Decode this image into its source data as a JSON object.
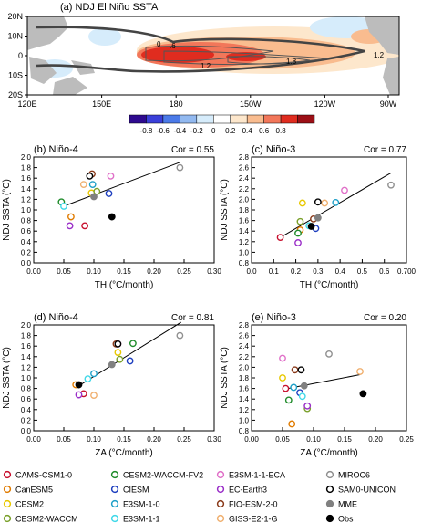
{
  "chart_data": [
    {
      "type": "heatmap",
      "title": "(a) NDJ El Niño SSTA",
      "x_ticks": [
        "120E",
        "150E",
        "180",
        "150W",
        "120W",
        "90W"
      ],
      "y_ticks": [
        "20N",
        "10N",
        "0",
        "10S",
        "20S"
      ],
      "contour_labels": [
        "0",
        ".6",
        "1.2",
        "1.8",
        "1.2"
      ],
      "colorbar": {
        "ticks": [
          "-0.8",
          "-0.6",
          "-0.4",
          "-0.2",
          "0",
          "0.2",
          "0.4",
          "0.6",
          "0.8"
        ],
        "colors": [
          "#2e0a8f",
          "#3a3fd9",
          "#4b7ae8",
          "#92b9f0",
          "#d6ecfb",
          "#ffffff",
          "#fde7cc",
          "#f9bc8f",
          "#f2775a",
          "#e02c1f",
          "#9c0f16"
        ]
      }
    },
    {
      "type": "scatter",
      "title": "(b) Niño-4",
      "cor": "Cor = 0.55",
      "xlabel": "TH (°C/month)",
      "ylabel": "NDJ SSTA (°C)",
      "xlim": [
        0,
        0.3
      ],
      "ylim": [
        0,
        2
      ],
      "x_ticks": [
        "0.00",
        "0.05",
        "0.10",
        "0.15",
        "0.20",
        "0.25",
        "0.30"
      ],
      "y_ticks": [
        "0.0",
        "0.2",
        "0.4",
        "0.6",
        "0.8",
        "1.0",
        "1.2",
        "1.4",
        "1.6",
        "1.8",
        "2.0"
      ],
      "x_tick_values": [
        0,
        0.05,
        0.1,
        0.15,
        0.2,
        0.25,
        0.3
      ],
      "y_tick_values": [
        0,
        0.2,
        0.4,
        0.6,
        0.8,
        1.0,
        1.2,
        1.4,
        1.6,
        1.8,
        2.0
      ],
      "fit": [
        [
          0.045,
          1.05
        ],
        [
          0.243,
          1.9
        ]
      ],
      "points": [
        {
          "model": "CAMS-CSM1-0",
          "x": 0.085,
          "y": 0.7
        },
        {
          "model": "CanESM5",
          "x": 0.062,
          "y": 0.87
        },
        {
          "model": "CESM2",
          "x": 0.096,
          "y": 1.32
        },
        {
          "model": "CESM2-WACCM",
          "x": 0.105,
          "y": 1.35
        },
        {
          "model": "CESM2-WACCM-FV2",
          "x": 0.046,
          "y": 1.15
        },
        {
          "model": "CIESM",
          "x": 0.125,
          "y": 1.31
        },
        {
          "model": "E3SM-1-0",
          "x": 0.098,
          "y": 1.48
        },
        {
          "model": "E3SM-1-1",
          "x": 0.05,
          "y": 1.07
        },
        {
          "model": "E3SM-1-1-ECA",
          "x": 0.128,
          "y": 1.64
        },
        {
          "model": "EC-Earth3",
          "x": 0.06,
          "y": 0.7
        },
        {
          "model": "FIO-ESM-2-0",
          "x": 0.097,
          "y": 1.68
        },
        {
          "model": "GISS-E2-1-G",
          "x": 0.083,
          "y": 1.48
        },
        {
          "model": "MIROC6",
          "x": 0.243,
          "y": 1.8
        },
        {
          "model": "SAM0-UNICON",
          "x": 0.093,
          "y": 1.64
        },
        {
          "model": "MME",
          "x": 0.1,
          "y": 1.25
        },
        {
          "model": "Obs",
          "x": 0.13,
          "y": 0.87
        }
      ]
    },
    {
      "type": "scatter",
      "title": "(c) Niño-3",
      "cor": "Cor = 0.77",
      "xlabel": "TH (°C/month)",
      "ylabel": "NDJ SSTA (°C)",
      "xlim": [
        0,
        0.7
      ],
      "ylim": [
        0.8,
        2.8
      ],
      "x_ticks": [
        "0.0",
        "0.1",
        "0.2",
        "0.3",
        "0.4",
        "0.5",
        "0.6",
        "0.700"
      ],
      "y_ticks": [
        "0.8",
        "1.0",
        "1.2",
        "1.4",
        "1.6",
        "1.8",
        "2.0",
        "2.2",
        "2.4",
        "2.6",
        "2.8"
      ],
      "x_tick_values": [
        0,
        0.1,
        0.2,
        0.3,
        0.4,
        0.5,
        0.6,
        0.7
      ],
      "y_tick_values": [
        0.8,
        1.0,
        1.2,
        1.4,
        1.6,
        1.8,
        2.0,
        2.2,
        2.4,
        2.6,
        2.8
      ],
      "fit": [
        [
          0.13,
          1.28
        ],
        [
          0.63,
          2.5
        ]
      ],
      "points": [
        {
          "model": "CAMS-CSM1-0",
          "x": 0.13,
          "y": 1.28
        },
        {
          "model": "CanESM5",
          "x": 0.22,
          "y": 1.42
        },
        {
          "model": "CESM2",
          "x": 0.23,
          "y": 1.93
        },
        {
          "model": "CESM2-WACCM",
          "x": 0.22,
          "y": 1.58
        },
        {
          "model": "CESM2-WACCM-FV2",
          "x": 0.21,
          "y": 1.36
        },
        {
          "model": "CIESM",
          "x": 0.29,
          "y": 1.45
        },
        {
          "model": "E3SM-1-0",
          "x": 0.38,
          "y": 1.94
        },
        {
          "model": "E3SM-1-1",
          "x": 0.26,
          "y": 1.5
        },
        {
          "model": "E3SM-1-1-ECA",
          "x": 0.42,
          "y": 2.17
        },
        {
          "model": "EC-Earth3",
          "x": 0.21,
          "y": 1.18
        },
        {
          "model": "FIO-ESM-2-0",
          "x": 0.28,
          "y": 1.63
        },
        {
          "model": "GISS-E2-1-G",
          "x": 0.33,
          "y": 1.93
        },
        {
          "model": "MIROC6",
          "x": 0.63,
          "y": 2.27
        },
        {
          "model": "SAM0-UNICON",
          "x": 0.3,
          "y": 1.95
        },
        {
          "model": "MME",
          "x": 0.3,
          "y": 1.65
        },
        {
          "model": "Obs",
          "x": 0.27,
          "y": 1.49
        }
      ]
    },
    {
      "type": "scatter",
      "title": "(d) Niño-4",
      "cor": "Cor = 0.81",
      "xlabel": "ZA (°C/month)",
      "ylabel": "NDJ SSTA (°C)",
      "xlim": [
        0,
        0.3
      ],
      "ylim": [
        0,
        2
      ],
      "x_ticks": [
        "0.00",
        "0.05",
        "0.10",
        "0.15",
        "0.20",
        "0.25",
        "0.30"
      ],
      "y_ticks": [
        "0.0",
        "0.2",
        "0.4",
        "0.6",
        "0.8",
        "1.0",
        "1.2",
        "1.4",
        "1.6",
        "1.8",
        "2.0"
      ],
      "x_tick_values": [
        0,
        0.05,
        0.1,
        0.15,
        0.2,
        0.25,
        0.3
      ],
      "y_tick_values": [
        0,
        0.2,
        0.4,
        0.6,
        0.8,
        1.0,
        1.2,
        1.4,
        1.6,
        1.8,
        2.0
      ],
      "fit": [
        [
          0.075,
          0.85
        ],
        [
          0.245,
          2.05
        ]
      ],
      "points": [
        {
          "model": "CAMS-CSM1-0",
          "x": 0.083,
          "y": 0.7
        },
        {
          "model": "CanESM5",
          "x": 0.07,
          "y": 0.87
        },
        {
          "model": "CESM2",
          "x": 0.14,
          "y": 1.48
        },
        {
          "model": "CESM2-WACCM",
          "x": 0.143,
          "y": 1.35
        },
        {
          "model": "CESM2-WACCM-FV2",
          "x": 0.165,
          "y": 1.65
        },
        {
          "model": "CIESM",
          "x": 0.16,
          "y": 1.32
        },
        {
          "model": "E3SM-1-0",
          "x": 0.1,
          "y": 1.08
        },
        {
          "model": "E3SM-1-1",
          "x": 0.09,
          "y": 0.98
        },
        {
          "model": "E3SM-1-1-ECA",
          "x": 0.14,
          "y": 1.64
        },
        {
          "model": "EC-Earth3",
          "x": 0.075,
          "y": 0.68
        },
        {
          "model": "FIO-ESM-2-0",
          "x": 0.137,
          "y": 1.64
        },
        {
          "model": "GISS-E2-1-G",
          "x": 0.1,
          "y": 0.67
        },
        {
          "model": "MIROC6",
          "x": 0.243,
          "y": 1.8
        },
        {
          "model": "SAM0-UNICON",
          "x": 0.14,
          "y": 1.64
        },
        {
          "model": "MME",
          "x": 0.13,
          "y": 1.25
        },
        {
          "model": "Obs",
          "x": 0.075,
          "y": 0.87
        }
      ]
    },
    {
      "type": "scatter",
      "title": "(e) Niño-3",
      "cor": "Cor = 0.20",
      "xlabel": "ZA (°C/month)",
      "ylabel": "NDJ SSTA (°C)",
      "xlim": [
        0,
        0.25
      ],
      "ylim": [
        0.8,
        2.8
      ],
      "x_ticks": [
        "0.00",
        "0.05",
        "0.10",
        "0.15",
        "0.20",
        "0.25"
      ],
      "y_ticks": [
        "0.8",
        "1.0",
        "1.2",
        "1.4",
        "1.6",
        "1.8",
        "2.0",
        "2.2",
        "2.4",
        "2.6",
        "2.8"
      ],
      "x_tick_values": [
        0,
        0.05,
        0.1,
        0.15,
        0.2,
        0.25
      ],
      "y_tick_values": [
        0.8,
        1.0,
        1.2,
        1.4,
        1.6,
        1.8,
        2.0,
        2.2,
        2.4,
        2.6,
        2.8
      ],
      "fit": [
        [
          0.05,
          1.58
        ],
        [
          0.175,
          1.86
        ]
      ],
      "points": [
        {
          "model": "CAMS-CSM1-0",
          "x": 0.055,
          "y": 1.6
        },
        {
          "model": "CanESM5",
          "x": 0.065,
          "y": 0.93
        },
        {
          "model": "CESM2",
          "x": 0.05,
          "y": 1.8
        },
        {
          "model": "CESM2-WACCM",
          "x": 0.09,
          "y": 1.22
        },
        {
          "model": "CESM2-WACCM-FV2",
          "x": 0.06,
          "y": 1.38
        },
        {
          "model": "CIESM",
          "x": 0.078,
          "y": 1.52
        },
        {
          "model": "E3SM-1-0",
          "x": 0.068,
          "y": 1.62
        },
        {
          "model": "E3SM-1-1",
          "x": 0.082,
          "y": 1.45
        },
        {
          "model": "E3SM-1-1-ECA",
          "x": 0.05,
          "y": 2.17
        },
        {
          "model": "EC-Earth3",
          "x": 0.09,
          "y": 1.27
        },
        {
          "model": "FIO-ESM-2-0",
          "x": 0.07,
          "y": 1.95
        },
        {
          "model": "GISS-E2-1-G",
          "x": 0.175,
          "y": 1.92
        },
        {
          "model": "MIROC6",
          "x": 0.125,
          "y": 2.25
        },
        {
          "model": "SAM0-UNICON",
          "x": 0.08,
          "y": 1.95
        },
        {
          "model": "MME",
          "x": 0.085,
          "y": 1.65
        },
        {
          "model": "Obs",
          "x": 0.18,
          "y": 1.5
        }
      ]
    }
  ],
  "legend": [
    {
      "name": "CAMS-CSM1-0",
      "color": "#c8102e",
      "filled": false
    },
    {
      "name": "CanESM5",
      "color": "#e07b00",
      "filled": false
    },
    {
      "name": "CESM2",
      "color": "#e8c800",
      "filled": false
    },
    {
      "name": "CESM2-WACCM",
      "color": "#7aa02a",
      "filled": false
    },
    {
      "name": "CESM2-WACCM-FV2",
      "color": "#1f8b2a",
      "filled": false
    },
    {
      "name": "CIESM",
      "color": "#1e3fbf",
      "filled": false
    },
    {
      "name": "E3SM-1-0",
      "color": "#1fa0c8",
      "filled": false
    },
    {
      "name": "E3SM-1-1",
      "color": "#40d8e8",
      "filled": false
    },
    {
      "name": "E3SM-1-1-ECA",
      "color": "#e070c8",
      "filled": false
    },
    {
      "name": "EC-Earth3",
      "color": "#9a2ec8",
      "filled": false
    },
    {
      "name": "FIO-ESM-2-0",
      "color": "#8a3a1a",
      "filled": false
    },
    {
      "name": "GISS-E2-1-G",
      "color": "#f0b070",
      "filled": false
    },
    {
      "name": "MIROC6",
      "color": "#909090",
      "filled": false
    },
    {
      "name": "SAM0-UNICON",
      "color": "#000000",
      "filled": false
    },
    {
      "name": "MME",
      "color": "#808080",
      "filled": true
    },
    {
      "name": "Obs",
      "color": "#000000",
      "filled": true
    }
  ]
}
